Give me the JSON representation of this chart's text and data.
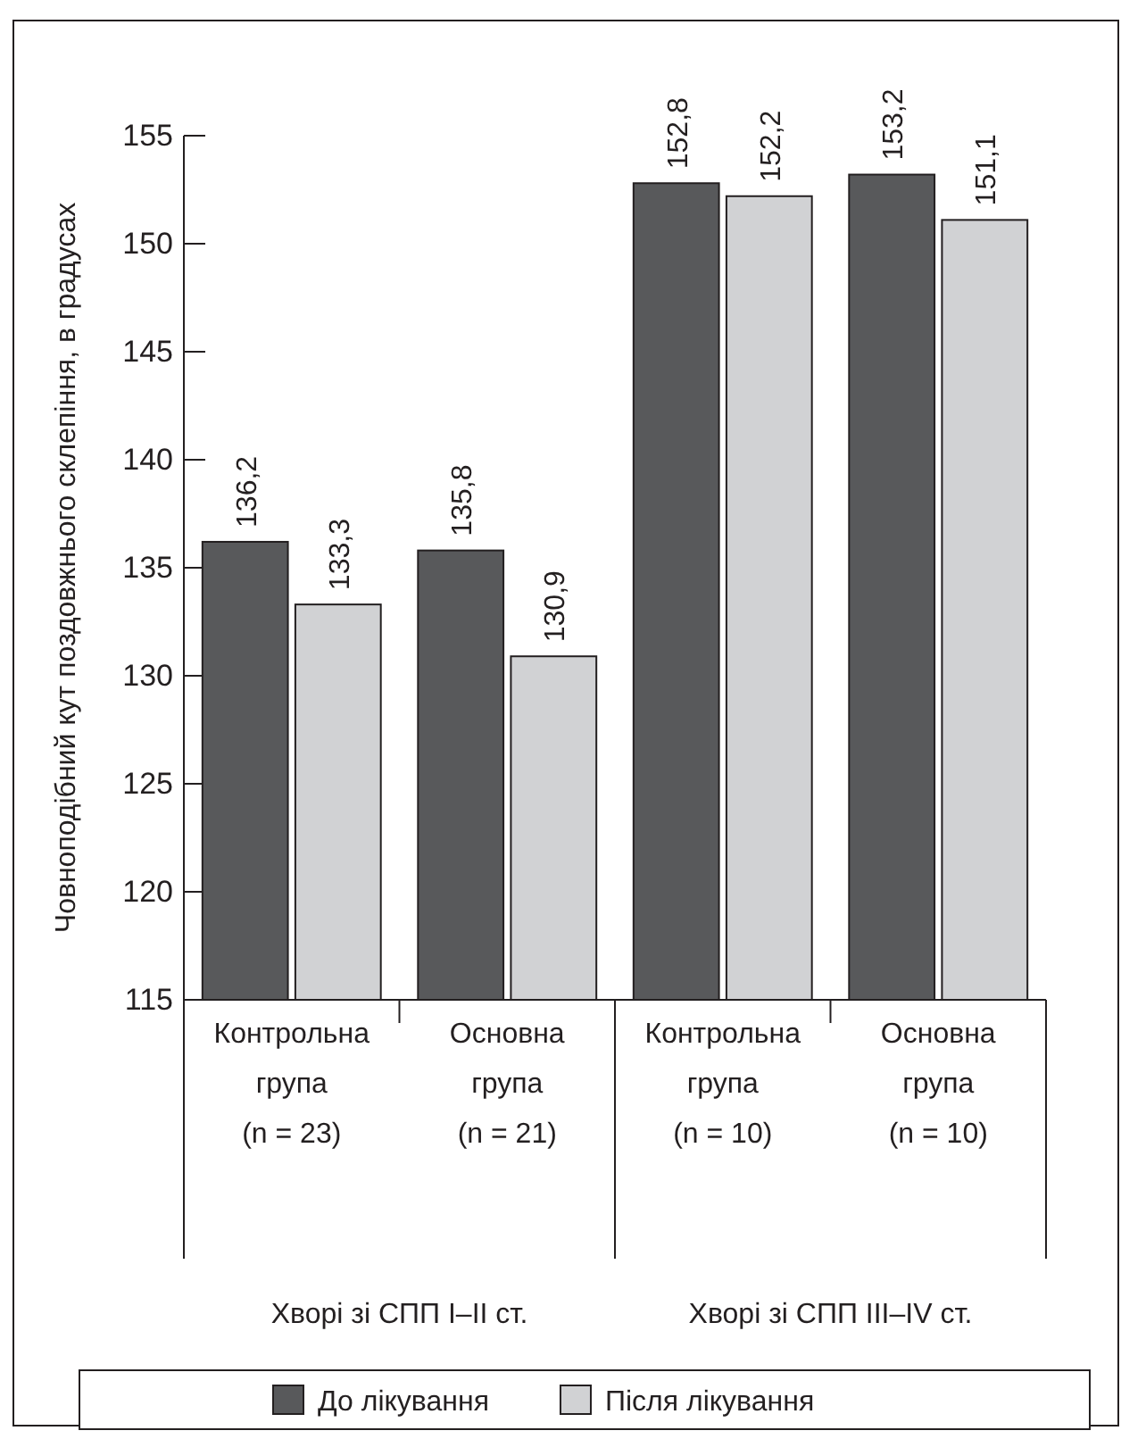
{
  "chart_data": {
    "type": "bar",
    "ylabel": "Човноподібний кут поздовжнього склепіння, в градусах",
    "categories": [
      "Контрольна\nгрупа\n(n = 23)",
      "Основна\nгрупа\n(n = 21)",
      "Контрольна\nгрупа\n(n = 10)",
      "Основна\nгрупа\n(n = 10)"
    ],
    "series": [
      {
        "name": "До лікування",
        "color": "#58595b",
        "values": [
          136.2,
          135.8,
          152.8,
          153.2
        ]
      },
      {
        "name": "Після лікування",
        "color": "#d1d2d4",
        "values": [
          133.3,
          130.9,
          152.2,
          151.1
        ]
      }
    ],
    "value_labels": [
      [
        "136,2",
        "135,8",
        "152,8",
        "153,2"
      ],
      [
        "133,3",
        "130,9",
        "152,2",
        "151,1"
      ]
    ],
    "annotations": [
      "Хворі зі СПП I–II ст.",
      "Хворі зі СПП III–IV ст."
    ],
    "ylim": [
      115,
      155
    ],
    "yticks": [
      115,
      120,
      125,
      130,
      135,
      140,
      145,
      150,
      155
    ],
    "grid": false,
    "legend": "bottom"
  }
}
